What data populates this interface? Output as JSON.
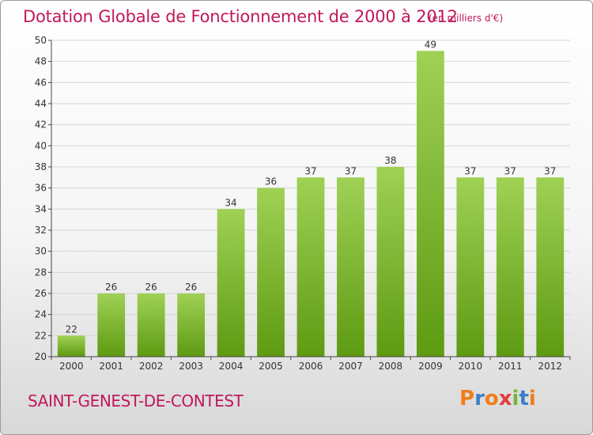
{
  "header": {
    "title": "Dotation Globale de Fonctionnement de 2000 à 2012",
    "subtitle": "(en milliers d'€)"
  },
  "footer": {
    "commune": "SAINT-GENEST-DE-CONTEST",
    "brand": "Proxiti"
  },
  "colors": {
    "title": "#c0185a",
    "bar_top": "#9fd155",
    "bar_bottom": "#5e9a12",
    "brand_letters": [
      "#f07d1a",
      "#3a7ec7",
      "#f07d1a",
      "#e23c3c",
      "#7ab43a",
      "#3a7ec7",
      "#f07d1a"
    ]
  },
  "chart_data": {
    "type": "bar",
    "title": "Dotation Globale de Fonctionnement de 2000 à 2012",
    "subtitle": "(en milliers d'€)",
    "categories": [
      "2000",
      "2001",
      "2002",
      "2003",
      "2004",
      "2005",
      "2006",
      "2007",
      "2008",
      "2009",
      "2010",
      "2011",
      "2012"
    ],
    "values": [
      22,
      26,
      26,
      26,
      34,
      36,
      37,
      37,
      38,
      49,
      37,
      37,
      37
    ],
    "ylim": [
      20,
      50
    ],
    "yticks": [
      20,
      22,
      24,
      26,
      28,
      30,
      32,
      34,
      36,
      38,
      40,
      42,
      44,
      46,
      48,
      50
    ],
    "grid": true
  }
}
